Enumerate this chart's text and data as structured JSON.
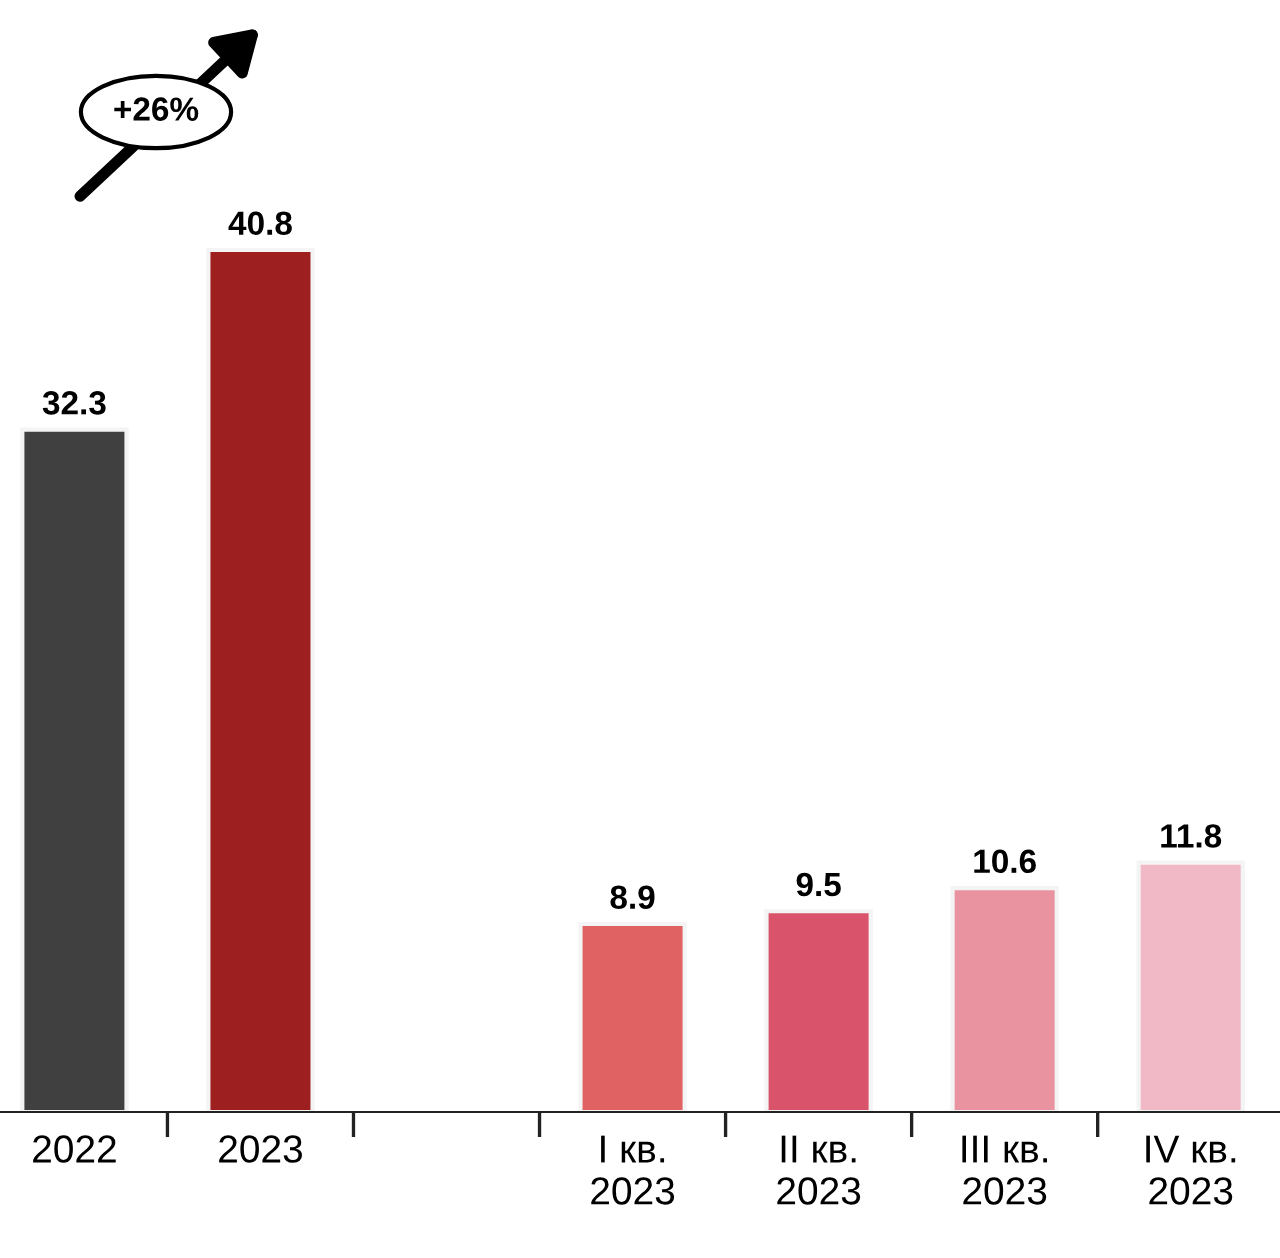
{
  "chart_data": {
    "type": "bar",
    "categories": [
      "2022",
      "2023",
      null,
      "I кв.\n2023",
      "II кв.\n2023",
      "III кв.\n2023",
      "IV кв.\n2023"
    ],
    "values": [
      32.3,
      40.8,
      null,
      8.9,
      9.5,
      10.6,
      11.8
    ],
    "colors": [
      "#404040",
      "#9e1f20",
      "#ffffff",
      "#e06262",
      "#d9536b",
      "#e8939f",
      "#f0b9c5"
    ],
    "data_labels": true,
    "annotations": [
      "+26%"
    ]
  }
}
